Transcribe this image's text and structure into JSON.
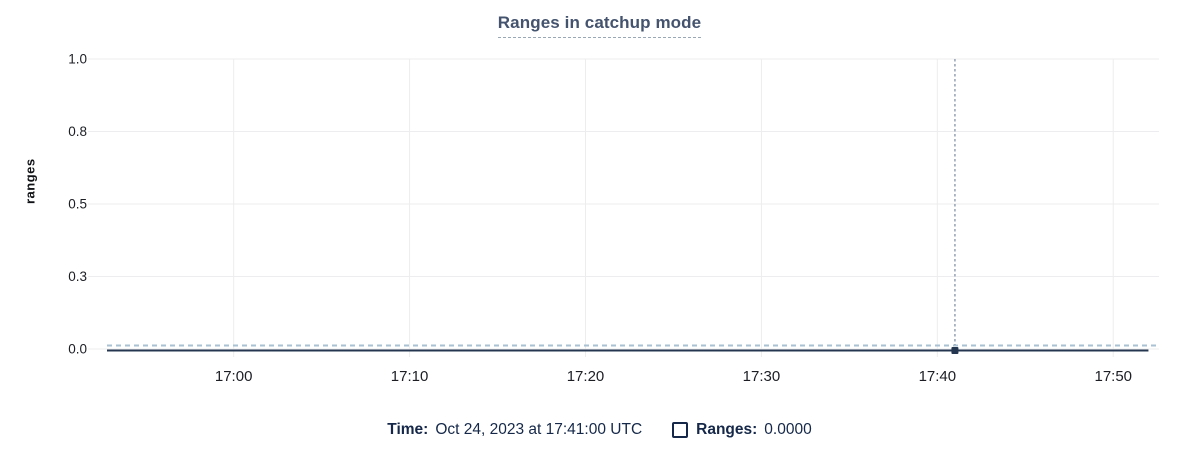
{
  "chart": {
    "title": "Ranges in catchup mode",
    "ylabel": "ranges"
  },
  "legend": {
    "time_label": "Time:",
    "time_value": "Oct 24, 2023 at 17:41:00 UTC",
    "ranges_label": "Ranges:",
    "ranges_value": "0.0000",
    "ranges_checkbox_checked": false
  },
  "chart_data": {
    "type": "line",
    "title": "Ranges in catchup mode",
    "xlabel": "",
    "ylabel": "ranges",
    "grid": true,
    "ylim": [
      0,
      1
    ],
    "y_ticks": [
      {
        "value": 0.0,
        "label": "0.0"
      },
      {
        "value": 0.25,
        "label": "0.3"
      },
      {
        "value": 0.5,
        "label": "0.5"
      },
      {
        "value": 0.75,
        "label": "0.8"
      },
      {
        "value": 1.0,
        "label": "1.0"
      }
    ],
    "x_domain_minutes": [
      1012.8,
      1072.6
    ],
    "x_tick_minutes": [
      1020,
      1030,
      1040,
      1050,
      1060,
      1070
    ],
    "x_tick_labels": [
      "17:00",
      "17:10",
      "17:20",
      "17:30",
      "17:40",
      "17:50"
    ],
    "series": [
      {
        "name": "Ranges",
        "constant_value": 0,
        "solid_end_minute": 1072.0,
        "color": "#253750",
        "dashed_overlay_color": "#a9c1d2"
      }
    ],
    "hover": {
      "time_label": "Oct 24, 2023 at 17:41:00 UTC",
      "minute": 1061,
      "value": 0,
      "value_label": "0.0000",
      "crosshair_color": "#8c9cab",
      "marker_color": "#253750"
    },
    "colors": {
      "grid": "#ededef",
      "tick_text": "#1c1e24"
    }
  }
}
